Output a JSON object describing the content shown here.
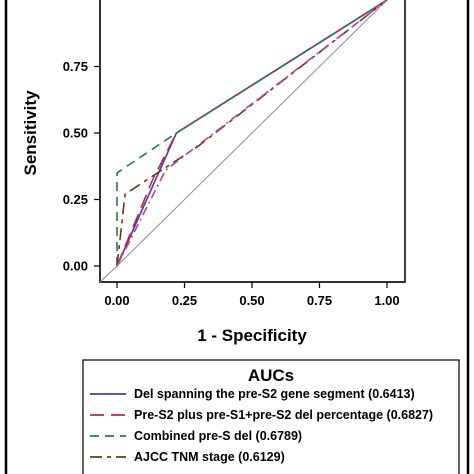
{
  "chart_data": {
    "type": "line",
    "xlabel": "1 - Specificity",
    "ylabel": "Sensitivity",
    "xlim": [
      0,
      1
    ],
    "ylim": [
      0,
      1
    ],
    "x_ticks": [
      "0.00",
      "0.25",
      "0.50",
      "0.75",
      "1.00"
    ],
    "y_ticks": [
      "0.00",
      "0.25",
      "0.50",
      "0.75"
    ],
    "grid": false,
    "reference_line": {
      "x": [
        0,
        1
      ],
      "y": [
        0,
        1
      ],
      "color": "#8c8c8c"
    },
    "legend": {
      "title": "AUCs",
      "position": "bottom"
    },
    "series": [
      {
        "name": "Del spanning the pre-S2 gene segment (0.6413)",
        "color": "#4b3c9e",
        "dash": "solid",
        "x": [
          0,
          0.22,
          1
        ],
        "y": [
          0,
          0.5,
          1
        ]
      },
      {
        "name": "Pre-S2 plus pre-S1+pre-S2 del percentage (0.6827)",
        "color": "#c0284a",
        "dash": "long",
        "x": [
          0,
          0.13,
          0.22,
          1
        ],
        "y": [
          0,
          0.32,
          0.5,
          1
        ]
      },
      {
        "name": "Combined pre-S del (0.6789)",
        "color": "#1a7a6a",
        "dash": "medium",
        "x": [
          0,
          0,
          0.22,
          1
        ],
        "y": [
          0,
          0.35,
          0.5,
          1
        ]
      },
      {
        "name": "AJCC TNM stage (0.6129)",
        "color": "#6b3a12",
        "dash": "long-short",
        "x": [
          0,
          0.03,
          0.3,
          1
        ],
        "y": [
          0,
          0.27,
          0.45,
          1
        ]
      },
      {
        "name": "",
        "color": "#b040b8",
        "dash": "dash-dot",
        "x": [
          0,
          0.18,
          1
        ],
        "y": [
          0,
          0.36,
          1
        ]
      }
    ]
  }
}
